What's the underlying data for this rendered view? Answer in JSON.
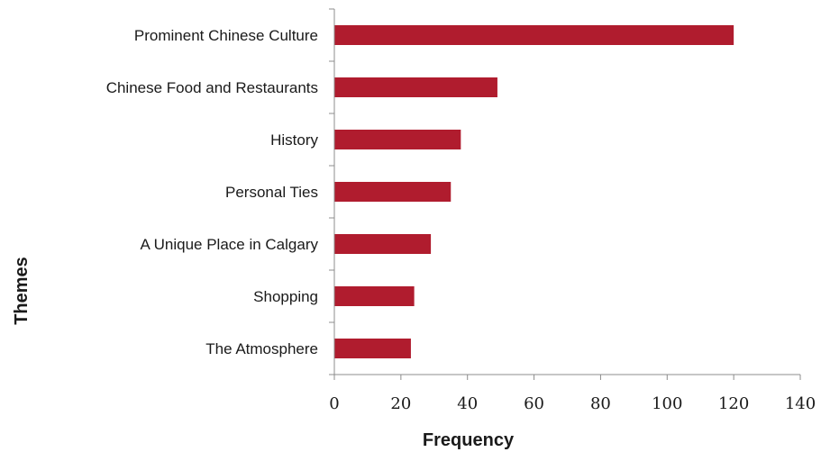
{
  "chart_data": {
    "type": "bar",
    "orientation": "horizontal",
    "categories": [
      "Prominent Chinese Culture",
      "Chinese Food and Restaurants",
      "History",
      "Personal Ties",
      "A Unique Place in Calgary",
      "Shopping",
      "The Atmosphere"
    ],
    "values": [
      120,
      49,
      38,
      35,
      29,
      24,
      23
    ],
    "xlabel": "Frequency",
    "ylabel": "Themes",
    "xlim": [
      0,
      140
    ],
    "xticks": [
      "0",
      "20",
      "40",
      "60",
      "80",
      "100",
      "120",
      "140"
    ],
    "grid": false,
    "bar_color": "#b01c2e"
  }
}
